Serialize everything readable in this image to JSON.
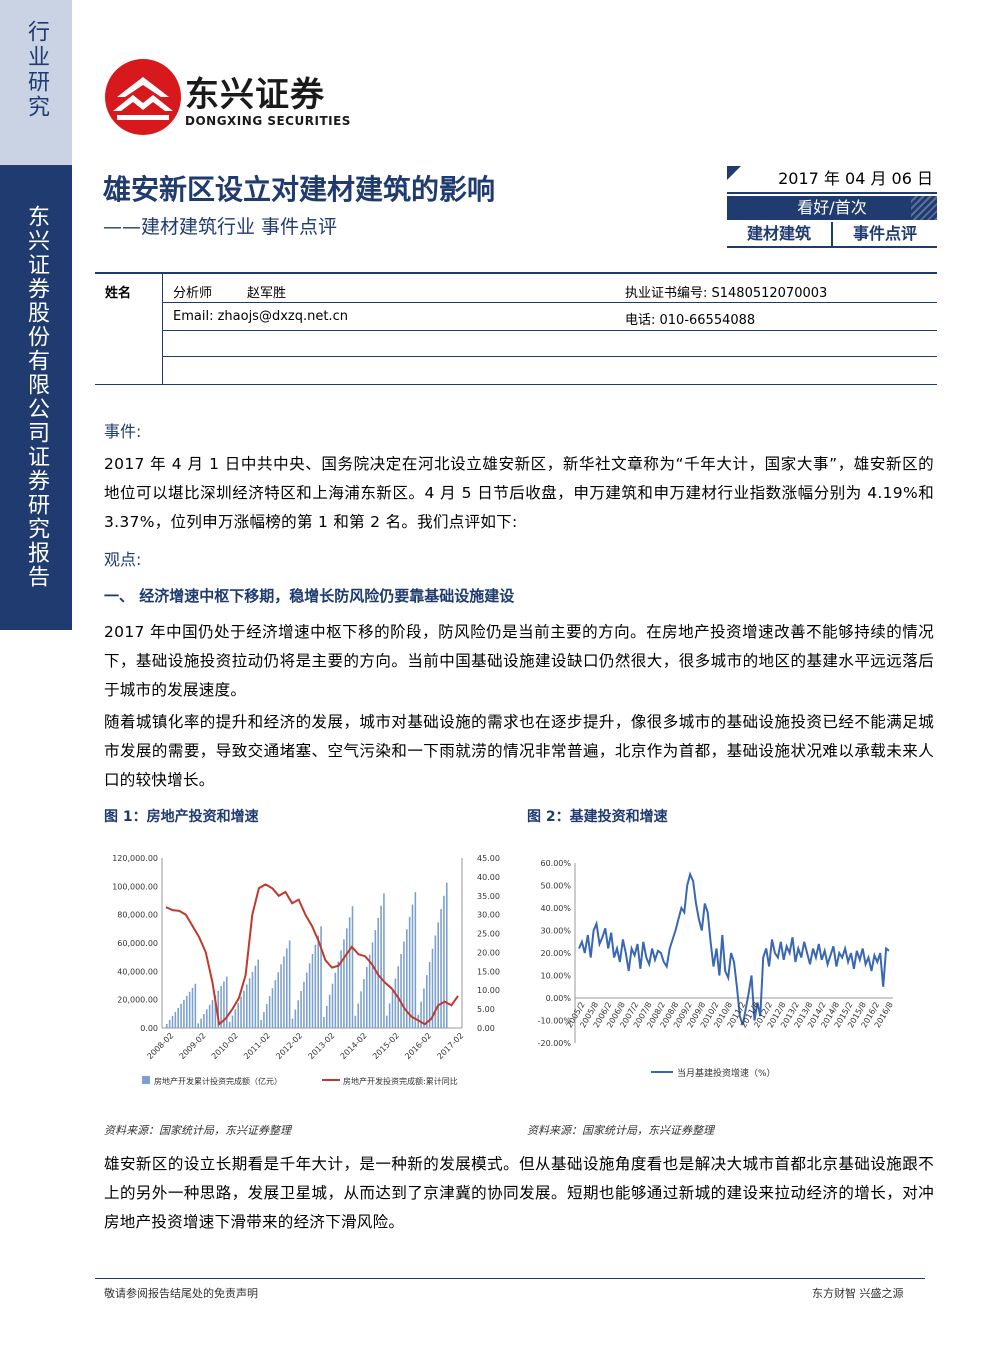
{
  "sidebar": {
    "top": "行业研究",
    "bottom": "东兴证券股份有限公司证券研究报告"
  },
  "logo": {
    "cn": "东兴证券",
    "en": "DONGXING SECURITIES",
    "color": "#d7191e"
  },
  "title": "雄安新区设立对建材建筑的影响",
  "subtitle": "——建材建筑行业 事件点评",
  "rating_box": {
    "date": "2017 年 04 月 06 日",
    "rating": "看好/首次",
    "cat1": "建材建筑",
    "cat2": "事件点评"
  },
  "analyst": {
    "name_label": "姓名",
    "role": "分析师",
    "name": "赵军胜",
    "cert": "执业证书编号: S1480512070003",
    "email": "Email:  zhaojs@dxzq.net.cn",
    "phone": "电话: 010-66554088"
  },
  "event": {
    "heading": "事件:",
    "text": "2017 年 4 月 1 日中共中央、国务院决定在河北设立雄安新区，新华社文章称为“千年大计，国家大事”，雄安新区的地位可以堪比深圳经济特区和上海浦东新区。4 月 5 日节后收盘，申万建筑和申万建材行业指数涨幅分别为 4.19%和 3.37%，位列申万涨幅榜的第 1 和第 2 名。我们点评如下:"
  },
  "view": {
    "heading": "观点:",
    "point1": "一、 经济增速中枢下移期，稳增长防风险仍要靠基础设施建设",
    "p1": "2017  年中国仍处于经济增速中枢下移的阶段，防风险仍是当前主要的方向。在房地产投资增速改善不能够持续的情况下，基础设施投资拉动仍将是主要的方向。当前中国基础设施建设缺口仍然很大，很多城市的地区的基建水平远远落后于城市的发展速度。",
    "p2": "随着城镇化率的提升和经济的发展，城市对基础设施的需求也在逐步提升，像很多城市的基础设施投资已经不能满足城市发展的需要，导致交通堵塞、空气污染和一下雨就涝的情况非常普遍，北京作为首都，基础设施状况难以承载未来人口的较快增长。",
    "p3": "雄安新区的设立长期看是千年大计，是一种新的发展模式。但从基础设施角度看也是解决大城市首都北京基础设施跟不上的另外一种思路，发展卫星城，从而达到了京津冀的协同发展。短期也能够通过新城的建设来拉动经济的增长，对冲房地产投资增速下滑带来的经济下滑风险。"
  },
  "fig1": {
    "title": "图 1：房地产投资和增速",
    "source": "资料来源：国家统计局，东兴证券整理"
  },
  "fig2": {
    "title": "图 2：基建投资和增速",
    "source": "资料来源：国家统计局，东兴证券整理"
  },
  "chart_data": [
    {
      "type": "bar",
      "left_ylim": [
        0,
        120000
      ],
      "right_ylim": [
        0,
        45
      ],
      "left_ticks": [
        "0.00",
        "20,000.00",
        "40,000.00",
        "60,000.00",
        "80,000.00",
        "100,000.00",
        "120,000.00"
      ],
      "right_ticks": [
        "0.00",
        "5.00",
        "10.00",
        "15.00",
        "20.00",
        "25.00",
        "30.00",
        "35.00",
        "40.00",
        "45.00"
      ],
      "x_ticks": [
        "2008-02",
        "2009-02",
        "2010-02",
        "2011-02",
        "2012-02",
        "2013-02",
        "2014-02",
        "2015-02",
        "2016-02",
        "2017-02"
      ],
      "legend": [
        "房地产开发累计投资完成额（亿元）",
        "房地产开发投资完成额:累计同比"
      ],
      "bar_color": "#7b9fcf",
      "line_color": "#c0392b",
      "series_bars_annual_cycle_peak": [
        31200,
        36200,
        48300,
        61800,
        71800,
        86000,
        95000,
        95900,
        102600
      ],
      "series_line": [
        32.0,
        31.2,
        31.0,
        30.0,
        27.0,
        24.0,
        20.0,
        12.0,
        1.0,
        2.5,
        5.0,
        8.0,
        14.0,
        30.0,
        37.0,
        38.0,
        37.0,
        35.0,
        36.0,
        33.0,
        34.0,
        30.0,
        27.0,
        23.0,
        18.0,
        16.0,
        16.5,
        19.0,
        21.5,
        19.5,
        19.0,
        17.0,
        14.0,
        12.0,
        10.5,
        8.0,
        5.0,
        3.0,
        2.0,
        1.0,
        2.5,
        6.0,
        7.0,
        6.0,
        8.5
      ]
    },
    {
      "type": "line",
      "ylim": [
        -20,
        60
      ],
      "y_ticks": [
        "-20.00%",
        "-10.00%",
        "0.00%",
        "10.00%",
        "20.00%",
        "30.00%",
        "40.00%",
        "50.00%",
        "60.00%"
      ],
      "x_ticks": [
        "2005/2",
        "2005/8",
        "2006/2",
        "2006/8",
        "2007/2",
        "2007/8",
        "2008/2",
        "2008/8",
        "2009/2",
        "2009/8",
        "2010/2",
        "2010/8",
        "2011/2",
        "2011/8",
        "2012/2",
        "2012/8",
        "2013/2",
        "2013/8",
        "2014/2",
        "2014/8",
        "2015/2",
        "2015/8",
        "2016/2",
        "2016/8"
      ],
      "legend": [
        "当月基建投资增速（%）"
      ],
      "line_color": "#3a67b3",
      "values": [
        22,
        25,
        20,
        28,
        18,
        30,
        33,
        24,
        27,
        31,
        22,
        29,
        18,
        22,
        16,
        26,
        20,
        12,
        22,
        19,
        24,
        13,
        25,
        18,
        15,
        22,
        17,
        21,
        20,
        16,
        14,
        22,
        26,
        30,
        35,
        40,
        38,
        50,
        55,
        52,
        42,
        35,
        30,
        42,
        38,
        25,
        14,
        22,
        10,
        28,
        12,
        9,
        20,
        16,
        5,
        -8,
        -12,
        -5,
        2,
        10,
        -10,
        -2,
        -8,
        18,
        22,
        14,
        26,
        20,
        18,
        25,
        17,
        23,
        20,
        27,
        16,
        22,
        18,
        25,
        20,
        15,
        22,
        18,
        24,
        17,
        21,
        15,
        19,
        23,
        14,
        20,
        18,
        22,
        16,
        20,
        13,
        21,
        17,
        22,
        15,
        18,
        12,
        19,
        16,
        20,
        5,
        22,
        21
      ]
    }
  ],
  "footer": {
    "left": "敬请参阅报告结尾处的免责声明",
    "right": "东方财智  兴盛之源"
  }
}
